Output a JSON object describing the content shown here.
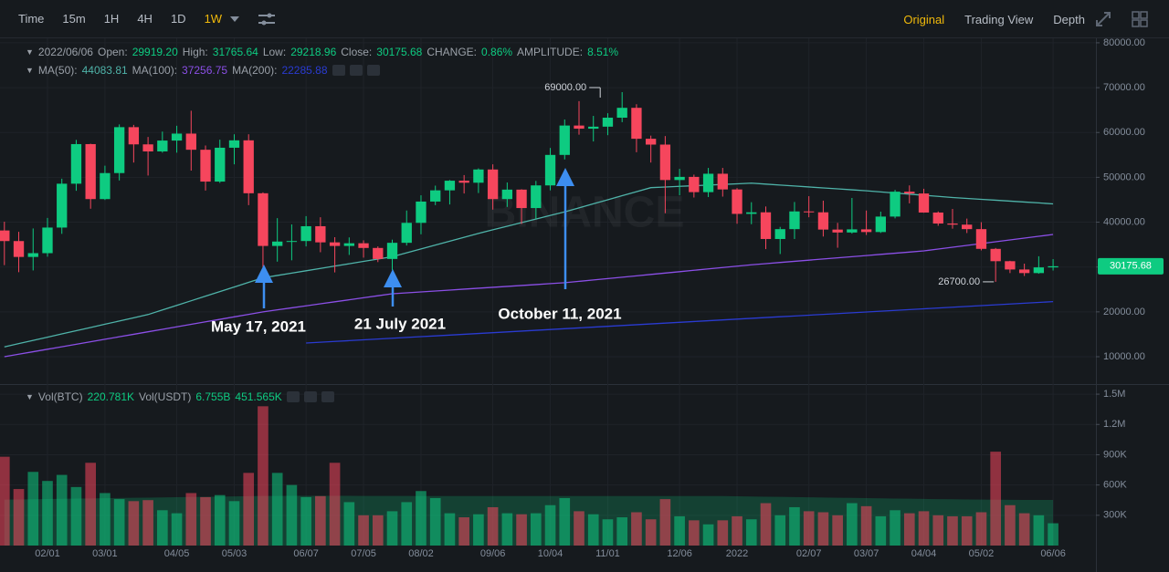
{
  "toolbar": {
    "intervals": [
      {
        "label": "Time"
      },
      {
        "label": "15m"
      },
      {
        "label": "1H"
      },
      {
        "label": "4H"
      },
      {
        "label": "1D"
      },
      {
        "label": "1W",
        "active": true
      }
    ],
    "views": [
      {
        "label": "Original",
        "active": true
      },
      {
        "label": "Trading View"
      },
      {
        "label": "Depth"
      }
    ]
  },
  "ohlc_info": {
    "date": "2022/06/06",
    "items": [
      {
        "label": "Open:",
        "value": "29919.20"
      },
      {
        "label": "High:",
        "value": "31765.64"
      },
      {
        "label": "Low:",
        "value": "29218.96"
      },
      {
        "label": "Close:",
        "value": "30175.68"
      },
      {
        "label": "CHANGE:",
        "value": "0.86%"
      },
      {
        "label": "AMPLITUDE:",
        "value": "8.51%"
      }
    ]
  },
  "volume_info": [
    {
      "label": "Vol(BTC)",
      "values": [
        "220.781K"
      ]
    },
    {
      "label": "Vol(USDT)",
      "values": [
        "6.755B",
        "451.565K"
      ]
    }
  ],
  "chart_data": {
    "type": "candlestick",
    "watermark": "BINANCE",
    "up_color": "#0ecb81",
    "down_color": "#f6465d",
    "grid": true,
    "categories": [
      null,
      null,
      null,
      "02/01",
      null,
      null,
      null,
      "03/01",
      null,
      null,
      null,
      null,
      "04/05",
      null,
      null,
      null,
      "05/03",
      null,
      null,
      null,
      null,
      "06/07",
      null,
      null,
      null,
      "07/05",
      null,
      null,
      null,
      "08/02",
      null,
      null,
      null,
      null,
      "09/06",
      null,
      null,
      null,
      "10/04",
      null,
      null,
      null,
      "11/01",
      null,
      null,
      null,
      null,
      "12/06",
      null,
      null,
      null,
      "2022",
      null,
      null,
      null,
      null,
      "02/07",
      null,
      null,
      null,
      "03/07",
      null,
      null,
      null,
      "04/04",
      null,
      null,
      null,
      "05/02",
      null,
      null,
      null,
      null,
      "06/06"
    ],
    "open": [
      38150,
      35790,
      32250,
      33090,
      38800,
      48580,
      57410,
      45150,
      50950,
      61190,
      57350,
      55780,
      58200,
      59750,
      56150,
      49050,
      56600,
      58250,
      46450,
      34700,
      35680,
      35800,
      39100,
      35500,
      34700,
      35300,
      34250,
      31800,
      35400,
      39850,
      44600,
      47100,
      49250,
      48800,
      51750,
      45150,
      47260,
      43150,
      48200,
      55000,
      61550,
      60850,
      61300,
      63300,
      65500,
      58600,
      57300,
      49400,
      50100,
      46700,
      50800,
      47300,
      41850,
      42200,
      36250,
      38450,
      42400,
      42200,
      38350,
      37700,
      38400,
      37800,
      41250,
      46800,
      46400,
      42150,
      39700,
      39450,
      38450,
      34050,
      31300,
      29450,
      28650,
      29919.2
    ],
    "high": [
      40100,
      37850,
      38600,
      40950,
      49700,
      58350,
      57500,
      52600,
      61800,
      61700,
      59000,
      60200,
      61500,
      64850,
      57100,
      58400,
      59600,
      59600,
      46650,
      40900,
      39500,
      41350,
      41100,
      36650,
      36600,
      35950,
      34600,
      36100,
      42600,
      46000,
      48150,
      49400,
      50500,
      52000,
      52900,
      48850,
      47350,
      49200,
      56550,
      62900,
      67000,
      63700,
      64300,
      69000,
      66300,
      59300,
      59200,
      51900,
      50600,
      52100,
      52100,
      47600,
      44450,
      43500,
      38950,
      44500,
      45800,
      44800,
      39850,
      45400,
      42600,
      42350,
      47200,
      48200,
      47450,
      42400,
      42950,
      40800,
      40000,
      34250,
      31400,
      30750,
      32400,
      31765.64
    ],
    "low": [
      30420,
      28850,
      29240,
      32300,
      37400,
      47000,
      43000,
      44950,
      49300,
      53300,
      50400,
      55500,
      55500,
      51500,
      47050,
      48750,
      52900,
      43800,
      30000,
      31200,
      31500,
      34600,
      33300,
      28800,
      32700,
      32100,
      31100,
      29280,
      34800,
      37300,
      43800,
      43950,
      46400,
      46500,
      42800,
      43400,
      39600,
      40750,
      47100,
      54000,
      59500,
      58000,
      59400,
      62300,
      55600,
      53300,
      42000,
      46000,
      45500,
      45600,
      45700,
      39650,
      39550,
      34000,
      32900,
      36250,
      41100,
      36800,
      34300,
      37450,
      37150,
      37600,
      40850,
      44200,
      42100,
      39200,
      38550,
      37580,
      33700,
      26700,
      28650,
      28000,
      28500,
      29218.96
    ],
    "close": [
      35790,
      32250,
      33090,
      38800,
      48580,
      57410,
      45150,
      50950,
      61190,
      57350,
      55780,
      58200,
      59750,
      56150,
      49050,
      56600,
      58250,
      46450,
      34700,
      35680,
      35800,
      39100,
      35500,
      34700,
      35300,
      34250,
      31800,
      35400,
      39850,
      44600,
      47100,
      49250,
      48800,
      51750,
      45150,
      47260,
      43150,
      48200,
      55000,
      61550,
      60850,
      61300,
      63300,
      65500,
      58600,
      57300,
      49400,
      50100,
      46700,
      50800,
      47300,
      41850,
      42200,
      36250,
      38450,
      42400,
      42200,
      38350,
      37700,
      38400,
      37800,
      41250,
      46800,
      46400,
      42150,
      39700,
      39450,
      38450,
      34050,
      31300,
      29450,
      28650,
      29919.2,
      30175.68
    ],
    "moving_averages": [
      {
        "name": "MA(50):",
        "value_label": "44083.81",
        "color": "#4fb3a9",
        "values": [
          12200,
          12920,
          13640,
          14360,
          15080,
          15800,
          16520,
          17240,
          17960,
          18680,
          19400,
          20425,
          21450,
          22475,
          23500,
          24525,
          25550,
          26575,
          27600,
          28122,
          28644,
          29166,
          29688,
          30210,
          30732,
          31254,
          31776,
          32300,
          33167,
          34034,
          34901,
          35768,
          36635,
          37500,
          38300,
          39100,
          39900,
          40700,
          41500,
          42300,
          43200,
          44100,
          45000,
          45900,
          46800,
          47700,
          47843,
          47986,
          48129,
          48272,
          48415,
          48558,
          48700,
          48488,
          48276,
          48064,
          47852,
          47640,
          47428,
          47216,
          47000,
          46750,
          46500,
          46250,
          46000,
          45750,
          45500,
          45300,
          45100,
          44900,
          44700,
          44500,
          44300,
          44083.81
        ]
      },
      {
        "name": "MA(100):",
        "value_label": "37256.75",
        "color": "#8b4fe6",
        "values": [
          10000,
          10556,
          11111,
          11667,
          12222,
          12778,
          13333,
          13889,
          14444,
          15000,
          15556,
          16111,
          16667,
          17222,
          17778,
          18333,
          18889,
          19444,
          20000,
          20449,
          20898,
          21347,
          21796,
          22244,
          22693,
          23142,
          23591,
          24040,
          24245,
          24450,
          24655,
          24860,
          25065,
          25270,
          25475,
          25680,
          25885,
          26090,
          26295,
          26500,
          26808,
          27116,
          27424,
          27732,
          28040,
          28348,
          28656,
          28964,
          29272,
          29580,
          29888,
          30196,
          30500,
          30758,
          31016,
          31274,
          31532,
          31790,
          32048,
          32306,
          32564,
          32822,
          33080,
          33338,
          33600,
          34006,
          34412,
          34818,
          35224,
          35630,
          36036,
          36442,
          36848,
          37256.75
        ]
      },
      {
        "name": "MA(200):",
        "value_label": "22285.88",
        "color": "#2a3bd1",
        "values": [
          null,
          null,
          null,
          null,
          null,
          null,
          null,
          null,
          null,
          null,
          null,
          null,
          null,
          null,
          null,
          null,
          null,
          null,
          null,
          null,
          null,
          13050,
          13228,
          13405,
          13583,
          13760,
          13938,
          14116,
          14293,
          14471,
          14648,
          14826,
          15004,
          15181,
          15359,
          15536,
          15714,
          15892,
          16069,
          16247,
          16424,
          16602,
          16780,
          16957,
          17135,
          17312,
          17490,
          17668,
          17845,
          18023,
          18200,
          18378,
          18556,
          18733,
          18911,
          19088,
          19266,
          19444,
          19621,
          19799,
          19976,
          20154,
          20332,
          20509,
          20687,
          20864,
          21042,
          21220,
          21397,
          21575,
          21752,
          21930,
          22108,
          22285.88
        ]
      }
    ],
    "ylim": [
      3900,
      81000
    ],
    "yticks": [
      {
        "value": 10000,
        "label": "10000.00"
      },
      {
        "value": 20000,
        "label": "20000.00"
      },
      {
        "value": 30000,
        "label": "30000.00"
      },
      {
        "value": 40000,
        "label": "40000.00"
      },
      {
        "value": 50000,
        "label": "50000.00"
      },
      {
        "value": 60000,
        "label": "60000.00"
      },
      {
        "value": 70000,
        "label": "70000.00"
      },
      {
        "value": 80000,
        "label": "80000.00"
      }
    ],
    "last_price": {
      "value": 30175.68,
      "label": "30175.68"
    },
    "max_label": {
      "value": 69000,
      "label": "69000.00"
    },
    "min_label": {
      "value": 26700,
      "label": "26700.00"
    },
    "annotations": [
      {
        "text": "May 17, 2021"
      },
      {
        "text": "21 July 2021"
      },
      {
        "text": "October 11, 2021"
      }
    ],
    "volume": {
      "values": [
        880000,
        560000,
        730000,
        640000,
        700000,
        580000,
        820000,
        520000,
        460000,
        440000,
        450000,
        350000,
        320000,
        520000,
        480000,
        500000,
        440000,
        720000,
        1380000,
        720000,
        600000,
        480000,
        490000,
        820000,
        430000,
        300000,
        300000,
        340000,
        430000,
        540000,
        470000,
        320000,
        280000,
        310000,
        380000,
        320000,
        310000,
        320000,
        400000,
        470000,
        340000,
        310000,
        260000,
        280000,
        330000,
        260000,
        460000,
        290000,
        250000,
        210000,
        250000,
        290000,
        260000,
        420000,
        300000,
        380000,
        340000,
        330000,
        300000,
        420000,
        390000,
        290000,
        350000,
        320000,
        340000,
        300000,
        290000,
        290000,
        330000,
        930000,
        400000,
        320000,
        300000,
        220781
      ],
      "ma_values": [
        455000,
        457000,
        459000,
        461000,
        463000,
        465000,
        467000,
        469000,
        471000,
        473000,
        475000,
        477000,
        479000,
        481000,
        483000,
        485000,
        487000,
        489000,
        491000,
        492000,
        493000,
        493000,
        493000,
        493000,
        493000,
        492000,
        492000,
        491000,
        491000,
        490000,
        490000,
        490000,
        490000,
        490000,
        490000,
        490000,
        490000,
        490000,
        490000,
        490000,
        490000,
        490000,
        490000,
        490000,
        490000,
        490000,
        490000,
        490000,
        490000,
        490000,
        490000,
        488000,
        486000,
        484000,
        482000,
        480000,
        478000,
        476000,
        474000,
        472000,
        470000,
        468000,
        466000,
        464000,
        462000,
        460000,
        458500,
        457000,
        455500,
        454500,
        453500,
        452500,
        452000,
        451565
      ],
      "ma_color": "#0ecb81",
      "ylim": [
        0,
        1600000
      ],
      "yticks": [
        {
          "value": 300000,
          "label": "300K"
        },
        {
          "value": 600000,
          "label": "600K"
        },
        {
          "value": 900000,
          "label": "900K"
        },
        {
          "value": 1200000,
          "label": "1.2M"
        },
        {
          "value": 1500000,
          "label": "1.5M"
        }
      ]
    }
  }
}
